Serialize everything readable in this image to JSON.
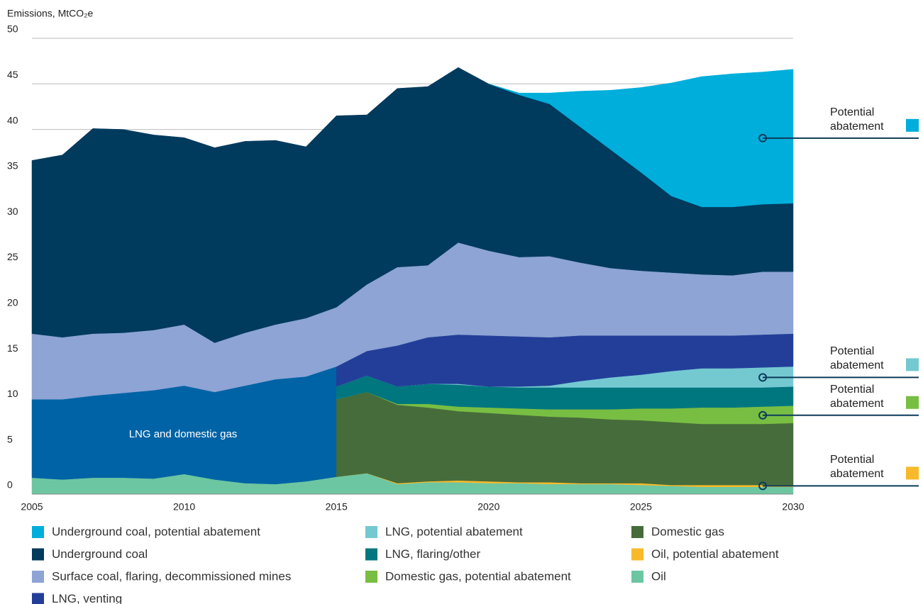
{
  "chart_data": {
    "type": "stacked_area",
    "y_label": "Emissions, MtCO₂e",
    "x": [
      2005,
      2006,
      2007,
      2008,
      2009,
      2010,
      2011,
      2012,
      2013,
      2014,
      2015,
      2015,
      2016,
      2017,
      2018,
      2019,
      2020,
      2021,
      2022,
      2023,
      2024,
      2025,
      2026,
      2027,
      2028,
      2029,
      2030
    ],
    "xlim": [
      2005,
      2030
    ],
    "xticks": [
      2005,
      2010,
      2015,
      2020,
      2025,
      2030
    ],
    "ylim": [
      0,
      50
    ],
    "yticks": [
      0,
      5,
      10,
      15,
      20,
      25,
      30,
      35,
      40,
      45,
      50
    ],
    "grid": true,
    "series": [
      {
        "name": "Oil",
        "color": "#6cc6a1",
        "values": [
          1.8,
          1.6,
          1.8,
          1.8,
          1.7,
          2.2,
          1.6,
          1.2,
          1.1,
          1.4,
          1.9,
          1.9,
          2.3,
          1.1,
          1.3,
          1.3,
          1.2,
          1.2,
          1.1,
          1.1,
          1.1,
          1.0,
          0.9,
          0.8,
          0.8,
          0.8,
          0.8
        ]
      },
      {
        "name": "Oil, potential abatement",
        "color": "#f8b92a",
        "values": [
          null,
          null,
          null,
          null,
          null,
          null,
          null,
          null,
          null,
          null,
          null,
          0,
          0,
          0.1,
          0.1,
          0.2,
          0.2,
          0.1,
          0.2,
          0.1,
          0.1,
          0.2,
          0.1,
          0.2,
          0.2,
          0.2,
          0.2
        ]
      },
      {
        "name": "LNG and domestic gas",
        "color": "#0063a5",
        "legend": false,
        "values": [
          8.6,
          8.8,
          9.0,
          9.3,
          9.7,
          9.7,
          9.6,
          10.7,
          11.5,
          11.5,
          12.1,
          null,
          null,
          null,
          null,
          null,
          null,
          null,
          null,
          null,
          null,
          null,
          null,
          null,
          null,
          null,
          null
        ]
      },
      {
        "name": "Domestic gas",
        "color": "#466c3b",
        "values": [
          null,
          null,
          null,
          null,
          null,
          null,
          null,
          null,
          null,
          null,
          null,
          8.5,
          8.9,
          8.6,
          8.1,
          7.6,
          7.5,
          7.4,
          7.2,
          7.2,
          7.0,
          6.9,
          6.9,
          6.7,
          6.7,
          6.7,
          6.8
        ]
      },
      {
        "name": "Domestic gas, potential abatement",
        "color": "#78be43",
        "values": [
          null,
          null,
          null,
          null,
          null,
          null,
          null,
          null,
          null,
          null,
          null,
          0,
          0,
          0.1,
          0.4,
          0.5,
          0.6,
          0.7,
          0.8,
          0.9,
          1.1,
          1.3,
          1.5,
          1.8,
          1.8,
          1.9,
          1.9
        ]
      },
      {
        "name": "LNG, flaring/other",
        "color": "#00767f",
        "values": [
          null,
          null,
          null,
          null,
          null,
          null,
          null,
          null,
          null,
          null,
          null,
          1.4,
          1.8,
          1.9,
          2.2,
          2.4,
          2.3,
          2.3,
          2.4,
          2.4,
          2.4,
          2.3,
          2.3,
          2.2,
          2.2,
          2.1,
          2.1
        ]
      },
      {
        "name": "LNG, potential abatement",
        "color": "#74c9d1",
        "values": [
          null,
          null,
          null,
          null,
          null,
          null,
          null,
          null,
          null,
          null,
          null,
          0,
          0,
          0,
          0,
          0.1,
          0,
          0.1,
          0.2,
          0.7,
          1.1,
          1.4,
          1.8,
          2.1,
          2.1,
          2.2,
          2.2
        ]
      },
      {
        "name": "LNG, venting",
        "color": "#233e99",
        "values": [
          null,
          null,
          null,
          null,
          null,
          null,
          null,
          null,
          null,
          null,
          null,
          2.2,
          2.7,
          4.5,
          5.1,
          5.4,
          5.6,
          5.5,
          5.3,
          5.0,
          4.6,
          4.3,
          3.9,
          3.6,
          3.6,
          3.6,
          3.6
        ]
      },
      {
        "name": "Surface coal, flaring, decommissioned mines",
        "color": "#8da4d4",
        "values": [
          7.2,
          6.8,
          6.8,
          6.6,
          6.6,
          6.7,
          5.4,
          5.8,
          6.0,
          6.4,
          6.5,
          6.5,
          7.3,
          8.6,
          7.9,
          10.1,
          9.3,
          8.7,
          8.9,
          8.0,
          7.4,
          7.1,
          6.9,
          6.7,
          6.6,
          6.9,
          6.8
        ]
      },
      {
        "name": "Underground coal",
        "color": "#003a5d",
        "values": [
          19.0,
          20.0,
          22.5,
          22.3,
          21.4,
          20.5,
          21.4,
          21.0,
          20.2,
          18.8,
          21.0,
          21.0,
          18.6,
          19.6,
          19.6,
          19.2,
          18.3,
          17.8,
          16.7,
          14.9,
          13.0,
          10.8,
          8.4,
          7.4,
          7.5,
          7.4,
          7.5
        ]
      },
      {
        "name": "Underground coal, potential abatement",
        "color": "#00aedb",
        "values": [
          null,
          null,
          null,
          null,
          null,
          null,
          null,
          null,
          null,
          null,
          null,
          null,
          null,
          null,
          null,
          null,
          0,
          0.2,
          1.2,
          3.9,
          6.5,
          9.3,
          12.4,
          14.3,
          14.6,
          14.5,
          14.7
        ]
      }
    ],
    "annotations": [
      {
        "text": "Potential abatement",
        "color": "#00aedb"
      },
      {
        "text": "Potential abatement",
        "color": "#74c9d1"
      },
      {
        "text": "Potential abatement",
        "color": "#78be43"
      },
      {
        "text": "Potential abatement",
        "color": "#f8b92a"
      }
    ]
  }
}
